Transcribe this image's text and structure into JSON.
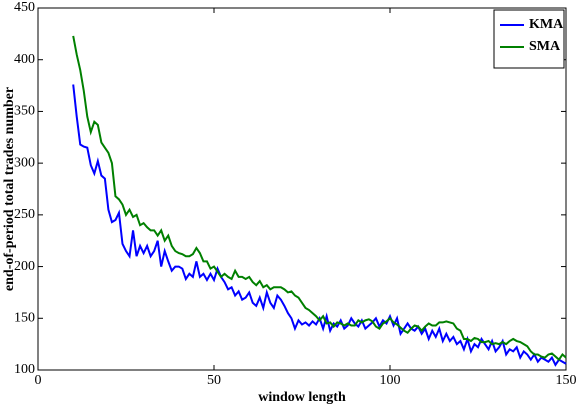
{
  "chart_data": {
    "type": "line",
    "xlabel": "window length",
    "ylabel": "end-of-period total trades number",
    "xlim": [
      0,
      150
    ],
    "xticks": [
      0,
      50,
      100,
      150
    ],
    "ylim": [
      100,
      450
    ],
    "yticks": [
      100,
      150,
      200,
      250,
      300,
      350,
      400,
      450
    ],
    "legend": "upper right",
    "x": [
      10,
      11,
      12,
      13,
      14,
      15,
      16,
      17,
      18,
      19,
      20,
      21,
      22,
      23,
      24,
      25,
      26,
      27,
      28,
      29,
      30,
      31,
      32,
      33,
      34,
      35,
      36,
      37,
      38,
      39,
      40,
      41,
      42,
      43,
      44,
      45,
      46,
      47,
      48,
      49,
      50,
      51,
      52,
      53,
      54,
      55,
      56,
      57,
      58,
      59,
      60,
      61,
      62,
      63,
      64,
      65,
      66,
      67,
      68,
      69,
      70,
      71,
      72,
      73,
      74,
      75,
      76,
      77,
      78,
      79,
      80,
      81,
      82,
      83,
      84,
      85,
      86,
      87,
      88,
      89,
      90,
      91,
      92,
      93,
      94,
      95,
      96,
      97,
      98,
      99,
      100,
      101,
      102,
      103,
      104,
      105,
      106,
      107,
      108,
      109,
      110,
      111,
      112,
      113,
      114,
      115,
      116,
      117,
      118,
      119,
      120,
      121,
      122,
      123,
      124,
      125,
      126,
      127,
      128,
      129,
      130,
      131,
      132,
      133,
      134,
      135,
      136,
      137,
      138,
      139,
      140,
      141,
      142,
      143,
      144,
      145,
      146,
      147,
      148,
      149,
      150
    ],
    "series": [
      {
        "name": "KMA",
        "color": "#0000ff",
        "values": [
          376,
          345,
          318,
          316,
          315,
          298,
          290,
          302,
          288,
          285,
          255,
          243,
          245,
          252,
          222,
          215,
          210,
          235,
          210,
          220,
          213,
          220,
          210,
          215,
          225,
          200,
          215,
          205,
          196,
          200,
          200,
          198,
          188,
          193,
          190,
          205,
          190,
          193,
          187,
          193,
          187,
          198,
          190,
          185,
          178,
          180,
          172,
          176,
          168,
          170,
          175,
          165,
          162,
          170,
          160,
          175,
          165,
          160,
          172,
          168,
          162,
          155,
          150,
          140,
          148,
          144,
          146,
          143,
          147,
          144,
          150,
          140,
          152,
          138,
          145,
          142,
          148,
          140,
          143,
          150,
          145,
          142,
          148,
          140,
          143,
          146,
          150,
          142,
          148,
          145,
          152,
          143,
          150,
          135,
          140,
          145,
          140,
          138,
          142,
          135,
          140,
          130,
          138,
          132,
          140,
          128,
          135,
          128,
          132,
          125,
          128,
          120,
          130,
          118,
          125,
          122,
          130,
          125,
          120,
          128,
          118,
          122,
          128,
          115,
          120,
          118,
          122,
          112,
          118,
          115,
          110,
          115,
          108,
          112,
          110,
          108,
          112,
          105,
          110,
          108,
          106
        ]
      },
      {
        "name": "SMA",
        "color": "#008000",
        "values": [
          423,
          405,
          390,
          370,
          345,
          330,
          340,
          337,
          320,
          315,
          310,
          300,
          268,
          265,
          260,
          250,
          255,
          248,
          250,
          240,
          242,
          238,
          235,
          235,
          230,
          235,
          225,
          230,
          220,
          215,
          213,
          212,
          210,
          210,
          212,
          218,
          213,
          205,
          205,
          198,
          200,
          195,
          190,
          193,
          190,
          188,
          196,
          190,
          190,
          188,
          190,
          185,
          182,
          186,
          180,
          182,
          178,
          180,
          180,
          180,
          178,
          175,
          176,
          172,
          170,
          165,
          160,
          158,
          155,
          152,
          148,
          152,
          145,
          146,
          142,
          146,
          145,
          143,
          145,
          143,
          143,
          148,
          146,
          148,
          149,
          147,
          142,
          140,
          145,
          147,
          150,
          146,
          144,
          141,
          138,
          136,
          140,
          143,
          142,
          138,
          142,
          145,
          143,
          143,
          146,
          146,
          147,
          146,
          145,
          140,
          138,
          130,
          130,
          128,
          131,
          130,
          127,
          127,
          128,
          125,
          126,
          125,
          127,
          125,
          128,
          130,
          128,
          127,
          125,
          123,
          118,
          115,
          115,
          113,
          112,
          115,
          116,
          113,
          110,
          115,
          112
        ]
      }
    ]
  }
}
